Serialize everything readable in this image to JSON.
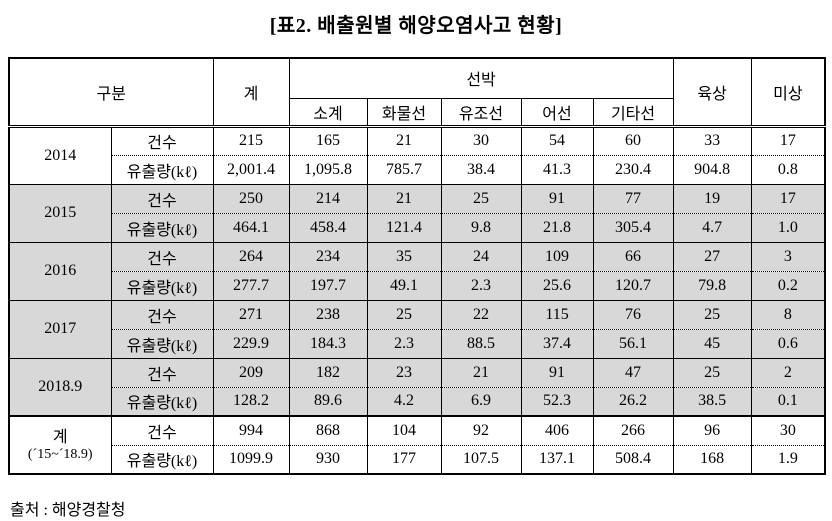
{
  "title": "[표2. 배출원별 해양오염사고 현황]",
  "source": "출처 : 해양경찰청",
  "colors": {
    "row_shade": "#d8d8d8",
    "border": "#000000"
  },
  "table": {
    "header": {
      "gubun": "구분",
      "total": "계",
      "ship": "선박",
      "ship_sub": [
        "소계",
        "화물선",
        "유조선",
        "어선",
        "기타선"
      ],
      "land": "육상",
      "unknown": "미상"
    },
    "row_labels": {
      "cases": "건수",
      "spill": "유출량(kℓ)"
    },
    "columns_after_label": [
      "계",
      "소계",
      "화물선",
      "유조선",
      "어선",
      "기타선",
      "육상",
      "미상"
    ],
    "groups": [
      {
        "year": "2014",
        "year2": "",
        "shaded": false,
        "total_group": false,
        "cases": [
          "215",
          "165",
          "21",
          "30",
          "54",
          "60",
          "33",
          "17"
        ],
        "spill": [
          "2,001.4",
          "1,095.8",
          "785.7",
          "38.4",
          "41.3",
          "230.4",
          "904.8",
          "0.8"
        ]
      },
      {
        "year": "2015",
        "year2": "",
        "shaded": true,
        "total_group": false,
        "cases": [
          "250",
          "214",
          "21",
          "25",
          "91",
          "77",
          "19",
          "17"
        ],
        "spill": [
          "464.1",
          "458.4",
          "121.4",
          "9.8",
          "21.8",
          "305.4",
          "4.7",
          "1.0"
        ]
      },
      {
        "year": "2016",
        "year2": "",
        "shaded": true,
        "total_group": false,
        "cases": [
          "264",
          "234",
          "35",
          "24",
          "109",
          "66",
          "27",
          "3"
        ],
        "spill": [
          "277.7",
          "197.7",
          "49.1",
          "2.3",
          "25.6",
          "120.7",
          "79.8",
          "0.2"
        ]
      },
      {
        "year": "2017",
        "year2": "",
        "shaded": true,
        "total_group": false,
        "cases": [
          "271",
          "238",
          "25",
          "22",
          "115",
          "76",
          "25",
          "8"
        ],
        "spill": [
          "229.9",
          "184.3",
          "2.3",
          "88.5",
          "37.4",
          "56.1",
          "45",
          "0.6"
        ]
      },
      {
        "year": "2018.9",
        "year2": "",
        "shaded": true,
        "total_group": false,
        "cases": [
          "209",
          "182",
          "23",
          "21",
          "91",
          "47",
          "25",
          "2"
        ],
        "spill": [
          "128.2",
          "89.6",
          "4.2",
          "6.9",
          "52.3",
          "26.2",
          "38.5",
          "0.1"
        ]
      },
      {
        "year": "계",
        "year2": "(´15~´18.9)",
        "shaded": false,
        "total_group": true,
        "cases": [
          "994",
          "868",
          "104",
          "92",
          "406",
          "266",
          "96",
          "30"
        ],
        "spill": [
          "1099.9",
          "930",
          "177",
          "107.5",
          "137.1",
          "508.4",
          "168",
          "1.9"
        ]
      }
    ]
  }
}
